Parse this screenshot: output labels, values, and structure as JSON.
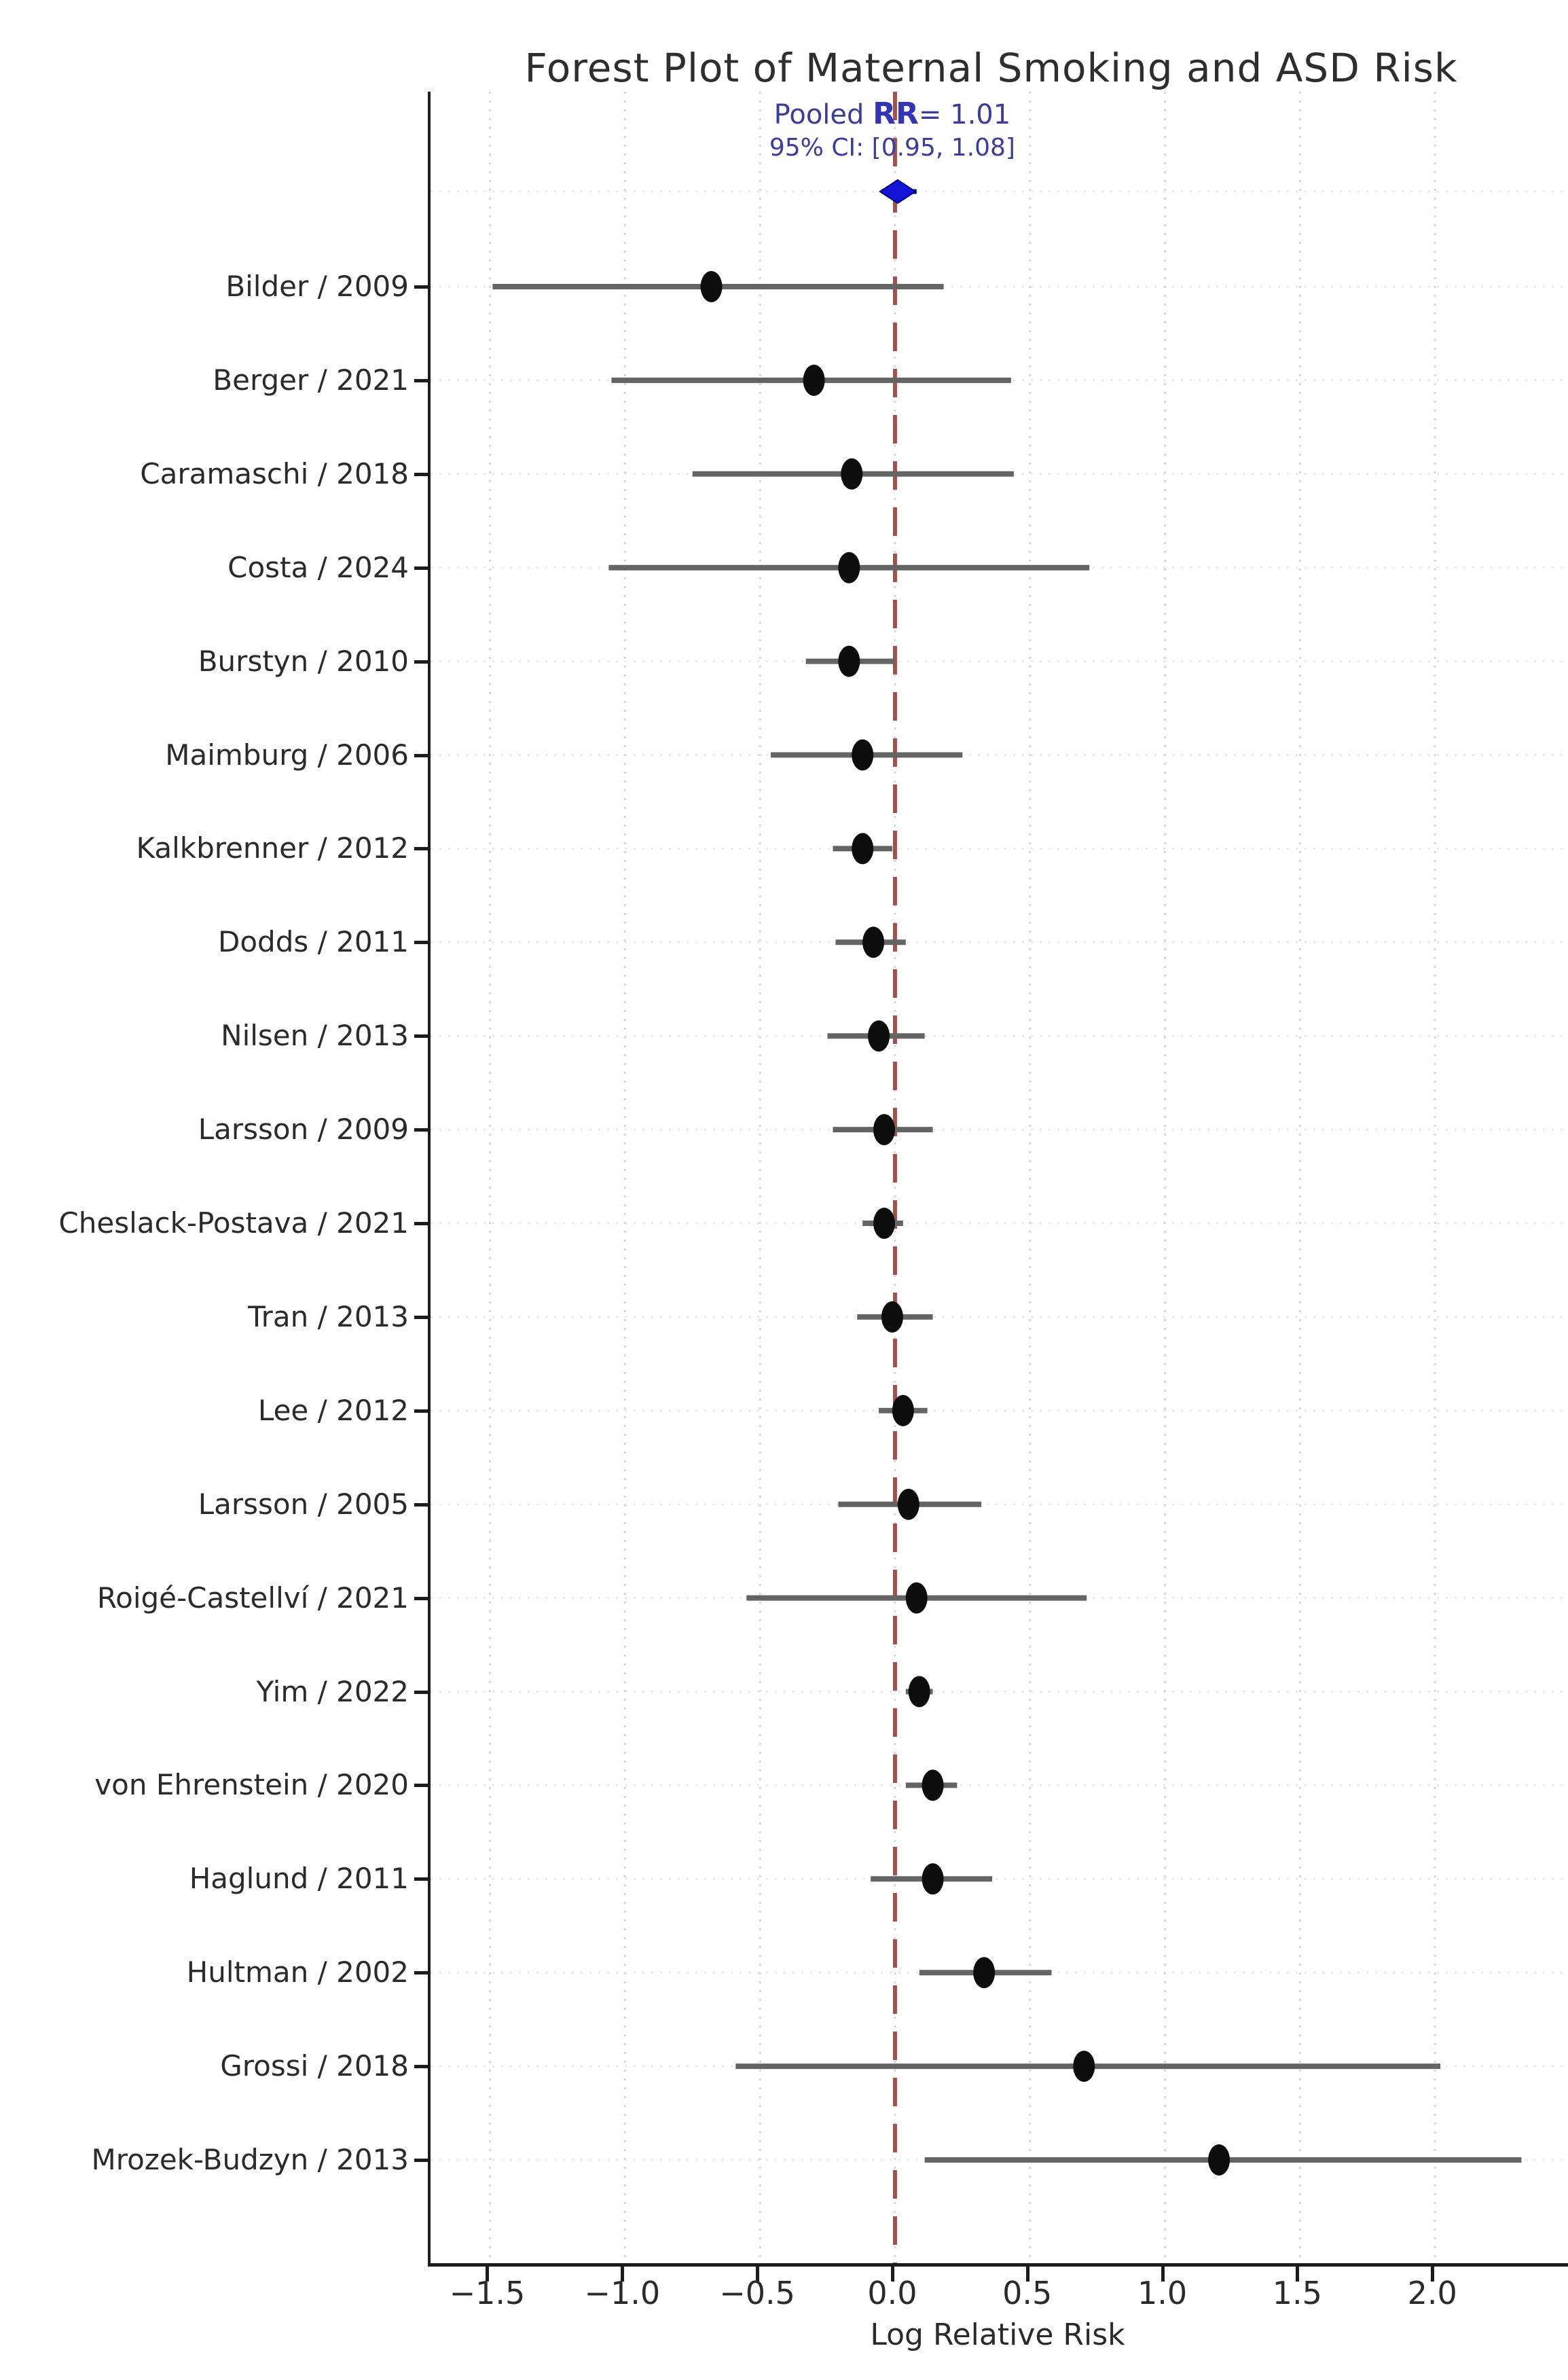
{
  "chart_data": {
    "type": "scatter",
    "variant": "forest-plot",
    "title": "Forest Plot of Maternal Smoking and ASD Risk",
    "xlabel": "Log Relative Risk",
    "xlim": [
      -1.72,
      2.5
    ],
    "xticks": [
      -1.5,
      -1.0,
      -0.5,
      0.0,
      0.5,
      1.0,
      1.5,
      2.0
    ],
    "xtick_labels": [
      "−1.5",
      "−1.0",
      "−0.5",
      "0.0",
      "0.5",
      "1.0",
      "1.5",
      "2.0"
    ],
    "grid": true,
    "reference_line_x": 0.0,
    "pooled": {
      "rr": 1.01,
      "ci_rr": [
        0.95,
        1.08
      ],
      "log_rr": 0.01,
      "log_ci": [
        -0.05,
        0.08
      ],
      "marker": "diamond"
    },
    "annotation": {
      "line1_prefix": "Pooled ",
      "line1_bold": "RR",
      "line1_rest": "= 1.01",
      "line2": "95% CI: [0.95, 1.08]"
    },
    "studies": [
      {
        "label": "Bilder / 2009",
        "log_rr": -0.68,
        "ci": [
          -1.49,
          0.18
        ]
      },
      {
        "label": "Berger / 2021",
        "log_rr": -0.3,
        "ci": [
          -1.05,
          0.43
        ]
      },
      {
        "label": "Caramaschi / 2018",
        "log_rr": -0.16,
        "ci": [
          -0.75,
          0.44
        ]
      },
      {
        "label": "Costa / 2024",
        "log_rr": -0.17,
        "ci": [
          -1.06,
          0.72
        ]
      },
      {
        "label": "Burstyn / 2010",
        "log_rr": -0.17,
        "ci": [
          -0.33,
          0.0
        ]
      },
      {
        "label": "Maimburg / 2006",
        "log_rr": -0.12,
        "ci": [
          -0.46,
          0.25
        ]
      },
      {
        "label": "Kalkbrenner / 2012",
        "log_rr": -0.12,
        "ci": [
          -0.23,
          -0.01
        ]
      },
      {
        "label": "Dodds / 2011",
        "log_rr": -0.08,
        "ci": [
          -0.22,
          0.04
        ]
      },
      {
        "label": "Nilsen / 2013",
        "log_rr": -0.06,
        "ci": [
          -0.25,
          0.11
        ]
      },
      {
        "label": "Larsson / 2009",
        "log_rr": -0.04,
        "ci": [
          -0.23,
          0.14
        ]
      },
      {
        "label": "Cheslack-Postava / 2021",
        "log_rr": -0.04,
        "ci": [
          -0.12,
          0.03
        ]
      },
      {
        "label": "Tran / 2013",
        "log_rr": -0.01,
        "ci": [
          -0.14,
          0.14
        ]
      },
      {
        "label": "Lee / 2012",
        "log_rr": 0.03,
        "ci": [
          -0.06,
          0.12
        ]
      },
      {
        "label": "Larsson / 2005",
        "log_rr": 0.05,
        "ci": [
          -0.21,
          0.32
        ]
      },
      {
        "label": "Roigé-Castellví / 2021",
        "log_rr": 0.08,
        "ci": [
          -0.55,
          0.71
        ]
      },
      {
        "label": "Yim / 2022",
        "log_rr": 0.09,
        "ci": [
          0.04,
          0.14
        ]
      },
      {
        "label": "von Ehrenstein / 2020",
        "log_rr": 0.14,
        "ci": [
          0.04,
          0.23
        ]
      },
      {
        "label": "Haglund / 2011",
        "log_rr": 0.14,
        "ci": [
          -0.09,
          0.36
        ]
      },
      {
        "label": "Hultman / 2002",
        "log_rr": 0.33,
        "ci": [
          0.09,
          0.58
        ]
      },
      {
        "label": "Grossi / 2018",
        "log_rr": 0.7,
        "ci": [
          -0.59,
          2.02
        ]
      },
      {
        "label": "Mrozek-Budzyn / 2013",
        "log_rr": 1.2,
        "ci": [
          0.11,
          2.32
        ]
      }
    ]
  },
  "colors": {
    "point": "#0d0d0d",
    "ci_line": "#646464",
    "reference_line": "#a0524c",
    "pooled_marker": "#1414d8",
    "pooled_whisker": "#111133",
    "grid_vertical": "#d7d7d7",
    "grid_horizontal": "#e9e9e9",
    "axis": "#1c1c1c",
    "annotation": "#3c3c9e",
    "title": "#2e2e2e"
  }
}
